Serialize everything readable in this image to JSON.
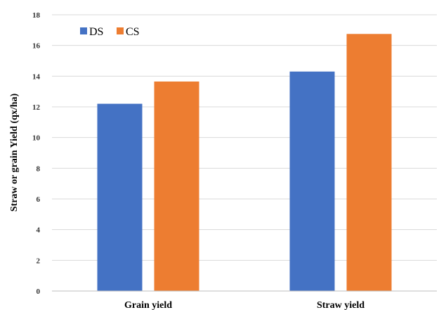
{
  "chart_data": {
    "type": "bar",
    "title": "",
    "xlabel": "",
    "ylabel": "Straw or grain Yield (qx/ha)",
    "categories": [
      "Grain yield",
      "Straw yield"
    ],
    "series": [
      {
        "name": "DS",
        "values": [
          12.2,
          14.3
        ],
        "color": "#4472C4"
      },
      {
        "name": "CS",
        "values": [
          13.65,
          16.75
        ],
        "color": "#ED7D31"
      }
    ],
    "ylim": [
      0,
      18
    ],
    "yticks": [
      "0",
      "2",
      "4",
      "6",
      "8",
      "10",
      "12",
      "14",
      "16",
      "18"
    ],
    "grid": true,
    "legend_position": "top-left"
  }
}
